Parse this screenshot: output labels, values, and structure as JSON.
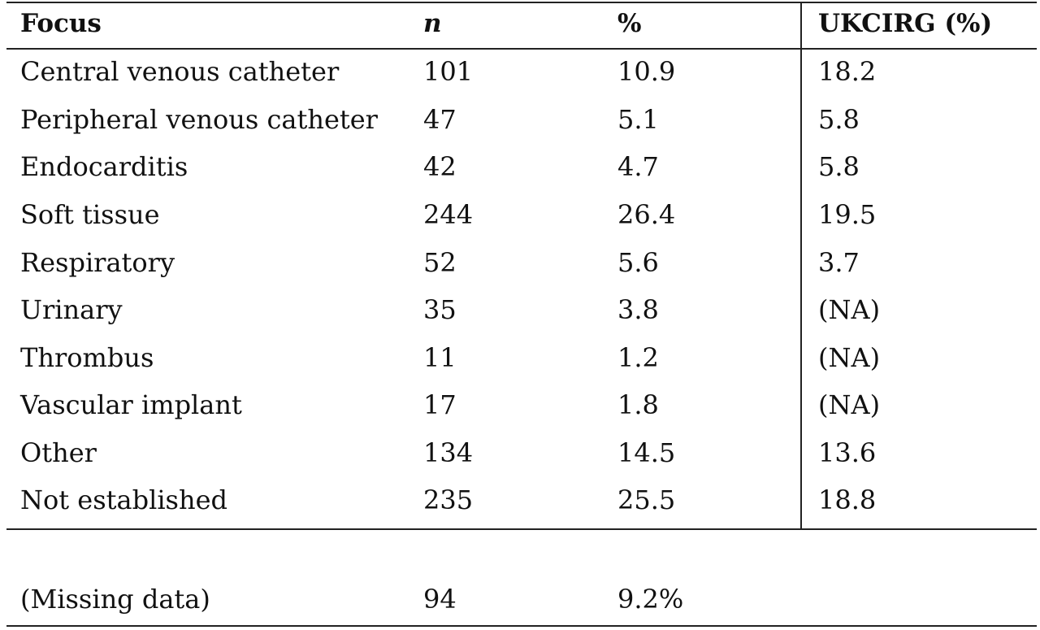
{
  "table": {
    "headers": [
      "Focus",
      "n",
      "%",
      "UKCIRG (%)"
    ],
    "rows": [
      [
        "Central venous catheter",
        "101",
        "10.9",
        "18.2"
      ],
      [
        "Peripheral venous catheter",
        "47",
        "5.1",
        "5.8"
      ],
      [
        "Endocarditis",
        "42",
        "4.7",
        "5.8"
      ],
      [
        "Soft tissue",
        "244",
        "26.4",
        "19.5"
      ],
      [
        "Respiratory",
        "52",
        "5.6",
        "3.7"
      ],
      [
        "Urinary",
        "35",
        "3.8",
        "(NA)"
      ],
      [
        "Thrombus",
        "11",
        "1.2",
        "(NA)"
      ],
      [
        "Vascular implant",
        "17",
        "1.8",
        "(NA)"
      ],
      [
        "Other",
        "134",
        "14.5",
        "13.6"
      ],
      [
        "Not established",
        "235",
        "25.5",
        "18.8"
      ]
    ],
    "footer_row": [
      "(Missing data)",
      "94",
      "9.2%",
      ""
    ]
  }
}
